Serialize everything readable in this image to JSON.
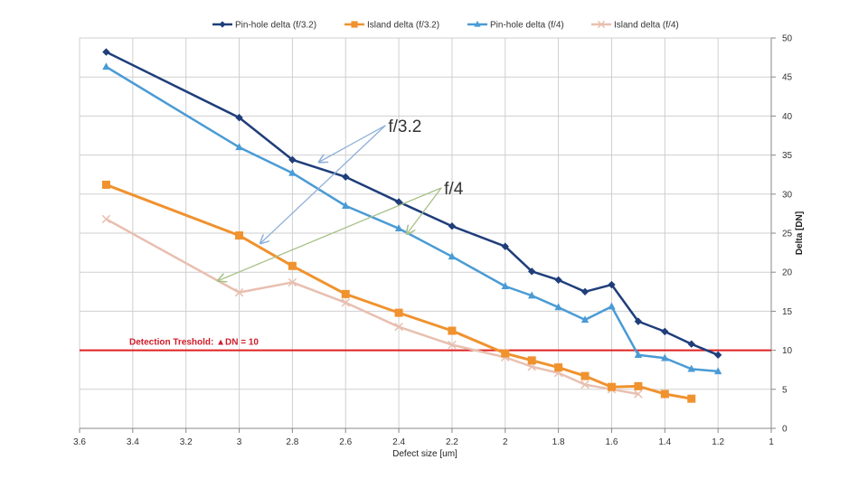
{
  "chart_data": {
    "type": "line",
    "title": "",
    "xlabel": "Defect size [um]",
    "ylabel": "Delta [DN]",
    "x_reversed": true,
    "xlim": [
      3.6,
      1.0
    ],
    "ylim": [
      0,
      50
    ],
    "x_ticks": [
      "3.6",
      "3.4",
      "3.2",
      "3",
      "2.8",
      "2.6",
      "2.4",
      "2.2",
      "2",
      "1.8",
      "1.6",
      "1.4",
      "1.2",
      "1"
    ],
    "y_ticks": [
      "0",
      "5",
      "10",
      "15",
      "20",
      "25",
      "30",
      "35",
      "40",
      "45",
      "50"
    ],
    "grid": true,
    "legend_position": "top",
    "series": [
      {
        "name": "Pin-hole delta (f/3.2)",
        "color": "#1f3e7a",
        "marker": "diamond",
        "x": [
          3.5,
          3.0,
          2.8,
          2.6,
          2.4,
          2.2,
          2.0,
          1.9,
          1.8,
          1.7,
          1.6,
          1.5,
          1.4,
          1.3,
          1.2
        ],
        "y": [
          48.2,
          39.8,
          34.4,
          32.2,
          29.0,
          25.9,
          23.3,
          20.1,
          19.0,
          17.5,
          18.4,
          13.7,
          12.4,
          10.8,
          9.4
        ]
      },
      {
        "name": "Island delta (f/3.2)",
        "color": "#f0922e",
        "marker": "square",
        "x": [
          3.5,
          3.0,
          2.8,
          2.6,
          2.4,
          2.2,
          2.0,
          1.9,
          1.8,
          1.7,
          1.6,
          1.5,
          1.4,
          1.3
        ],
        "y": [
          31.2,
          24.7,
          20.8,
          17.2,
          14.8,
          12.5,
          9.6,
          8.7,
          7.8,
          6.7,
          5.3,
          5.4,
          4.4,
          3.8
        ]
      },
      {
        "name": "Pin-hole delta (f/4)",
        "color": "#4a9bd5",
        "marker": "triangle",
        "x": [
          3.5,
          3.0,
          2.8,
          2.6,
          2.4,
          2.2,
          2.0,
          1.9,
          1.8,
          1.7,
          1.6,
          1.5,
          1.4,
          1.3,
          1.2
        ],
        "y": [
          46.3,
          36.0,
          32.7,
          28.5,
          25.6,
          22.0,
          18.2,
          17.0,
          15.5,
          13.9,
          15.6,
          9.4,
          9.0,
          7.6,
          7.3
        ]
      },
      {
        "name": "Island delta (f/4)",
        "color": "#e8bfb0",
        "marker": "x",
        "x": [
          3.5,
          3.0,
          2.8,
          2.6,
          2.4,
          2.2,
          2.0,
          1.9,
          1.8,
          1.7,
          1.6,
          1.5
        ],
        "y": [
          26.8,
          17.4,
          18.7,
          16.1,
          13.0,
          10.7,
          9.1,
          7.9,
          7.1,
          5.6,
          5.0,
          4.4
        ]
      }
    ],
    "threshold": {
      "value": 10,
      "label": "Detection Treshold: ▲DN = 10",
      "color": "#e02020"
    },
    "annotations": [
      {
        "text": "f/3.2",
        "color": "#8fb0d8",
        "arrows": [
          {
            "from": [
              2.45,
              38.8
            ],
            "to": [
              2.7,
              34.1
            ]
          },
          {
            "from": [
              2.45,
              38.8
            ],
            "to": [
              2.92,
              23.7
            ]
          }
        ]
      },
      {
        "text": "f/4",
        "color": "#a7c089",
        "arrows": [
          {
            "from": [
              2.24,
              30.8
            ],
            "to": [
              2.37,
              24.9
            ]
          },
          {
            "from": [
              2.24,
              30.8
            ],
            "to": [
              3.08,
              18.9
            ]
          }
        ]
      }
    ]
  }
}
